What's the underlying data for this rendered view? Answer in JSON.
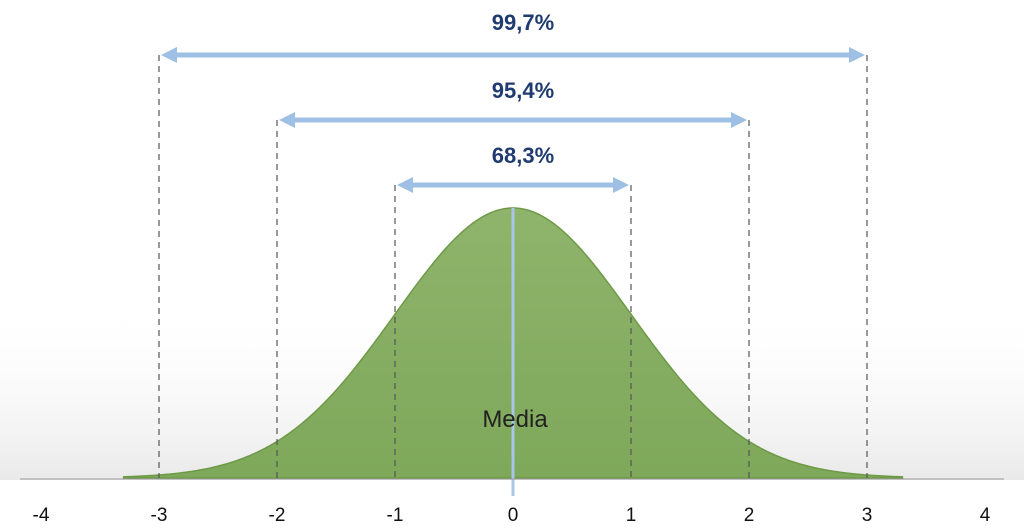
{
  "chart_data": {
    "type": "area",
    "title": "",
    "xlabel": "",
    "ylabel": "",
    "xlim": [
      -4,
      4
    ],
    "x_ticks": [
      "-4",
      "-3",
      "-2",
      "-1",
      "0",
      "1",
      "2",
      "3",
      "4"
    ],
    "curve": {
      "name": "",
      "distribution": "normal",
      "mean": 0,
      "sd": 1,
      "range": [
        -3.3,
        3.3
      ],
      "fill_color": "#8fb46c",
      "line_color": "#6e9a47"
    },
    "mean_label": "Media",
    "intervals": [
      {
        "sigma": 3,
        "label": "99,7%"
      },
      {
        "sigma": 2,
        "label": "95,4%"
      },
      {
        "sigma": 1,
        "label": "68,3%"
      }
    ],
    "colors": {
      "arrow": "#9ec0e4",
      "mean_line": "#a9c6e8",
      "dashed_line": "#555555",
      "percent_text": "#1f3b70",
      "axis": "#999999"
    },
    "grid": false,
    "legend": "none"
  }
}
